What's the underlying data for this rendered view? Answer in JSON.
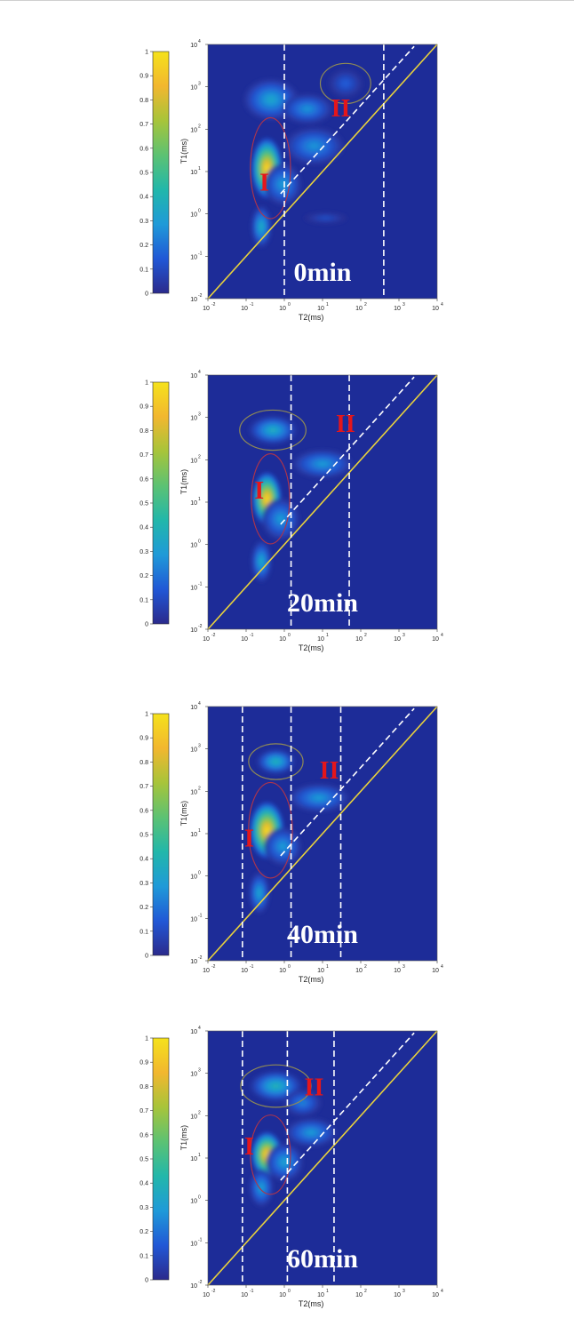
{
  "colors": {
    "background_map": "#1d2c98",
    "diagonal_line": "#e9d23c",
    "dashed_line": "#ffffff",
    "region_label": "#e4161b",
    "contour_upper": "#8f8a55",
    "contour_lower": "#b0344a",
    "colormap": [
      "#2b2a8c",
      "#2158d6",
      "#1f9ad8",
      "#22b7aa",
      "#5cc273",
      "#a7c43a",
      "#f2b72f",
      "#f5e21b"
    ]
  },
  "chart_data": [
    {
      "type": "heatmap",
      "time_label": "0min",
      "xlabel": "T2(ms)",
      "ylabel": "T1(ms)",
      "x_scale": "log",
      "y_scale": "log",
      "xlim": [
        0.01,
        10000
      ],
      "ylim": [
        0.01,
        10000
      ],
      "x_ticks": [
        {
          "base": "10",
          "exp": "-2"
        },
        {
          "base": "10",
          "exp": "-1"
        },
        {
          "base": "10",
          "exp": "0"
        },
        {
          "base": "10",
          "exp": "1"
        },
        {
          "base": "10",
          "exp": "2"
        },
        {
          "base": "10",
          "exp": "3"
        },
        {
          "base": "10",
          "exp": "4"
        }
      ],
      "y_ticks": [
        {
          "base": "10",
          "exp": "-2"
        },
        {
          "base": "10",
          "exp": "-1"
        },
        {
          "base": "10",
          "exp": "0"
        },
        {
          "base": "10",
          "exp": "1"
        },
        {
          "base": "10",
          "exp": "2"
        },
        {
          "base": "10",
          "exp": "3"
        },
        {
          "base": "10",
          "exp": "4"
        }
      ],
      "colorbar": {
        "min": 0,
        "max": 1,
        "ticks": [
          "0",
          "0.1",
          "0.2",
          "0.3",
          "0.4",
          "0.5",
          "0.6",
          "0.7",
          "0.8",
          "0.9",
          "1"
        ]
      },
      "cutoffs_T2": [
        1.0,
        400
      ],
      "region_labels": [
        {
          "text": "I",
          "x": 0.3,
          "y": 3.5
        },
        {
          "text": "II",
          "x": 30,
          "y": 200
        }
      ],
      "peaks": [
        {
          "T2": 0.35,
          "T1": 12,
          "amplitude": 1.0,
          "spread_x": 0.18,
          "spread_y": 0.32
        },
        {
          "T2": 0.25,
          "T1": 0.5,
          "amplitude": 0.38,
          "spread_x": 0.12,
          "spread_y": 0.22
        },
        {
          "T2": 0.9,
          "T1": 5,
          "amplitude": 0.3,
          "spread_x": 0.22,
          "spread_y": 0.22
        },
        {
          "T2": 6,
          "T1": 40,
          "amplitude": 0.28,
          "spread_x": 0.35,
          "spread_y": 0.2
        },
        {
          "T2": 0.45,
          "T1": 500,
          "amplitude": 0.34,
          "spread_x": 0.32,
          "spread_y": 0.22
        },
        {
          "T2": 4,
          "T1": 300,
          "amplitude": 0.28,
          "spread_x": 0.3,
          "spread_y": 0.16
        },
        {
          "T2": 40,
          "T1": 1200,
          "amplitude": 0.16,
          "spread_x": 0.2,
          "spread_y": 0.15
        },
        {
          "T2": 12,
          "T1": 0.8,
          "amplitude": 0.12,
          "spread_x": 0.25,
          "spread_y": 0.06
        }
      ]
    },
    {
      "type": "heatmap",
      "time_label": "20min",
      "xlabel": "T2(ms)",
      "ylabel": "T1(ms)",
      "x_scale": "log",
      "y_scale": "log",
      "xlim": [
        0.01,
        10000
      ],
      "ylim": [
        0.01,
        10000
      ],
      "x_ticks": [
        {
          "base": "10",
          "exp": "-2"
        },
        {
          "base": "10",
          "exp": "-1"
        },
        {
          "base": "10",
          "exp": "0"
        },
        {
          "base": "10",
          "exp": "1"
        },
        {
          "base": "10",
          "exp": "2"
        },
        {
          "base": "10",
          "exp": "3"
        },
        {
          "base": "10",
          "exp": "4"
        }
      ],
      "y_ticks": [
        {
          "base": "10",
          "exp": "-2"
        },
        {
          "base": "10",
          "exp": "-1"
        },
        {
          "base": "10",
          "exp": "0"
        },
        {
          "base": "10",
          "exp": "1"
        },
        {
          "base": "10",
          "exp": "2"
        },
        {
          "base": "10",
          "exp": "3"
        },
        {
          "base": "10",
          "exp": "4"
        }
      ],
      "colorbar": {
        "min": 0,
        "max": 1,
        "ticks": [
          "0",
          "0.1",
          "0.2",
          "0.3",
          "0.4",
          "0.5",
          "0.6",
          "0.7",
          "0.8",
          "0.9",
          "1"
        ]
      },
      "cutoffs_T2": [
        1.5,
        50
      ],
      "region_labels": [
        {
          "text": "I",
          "x": 0.22,
          "y": 12
        },
        {
          "text": "II",
          "x": 40,
          "y": 450
        }
      ],
      "peaks": [
        {
          "T2": 0.35,
          "T1": 12,
          "amplitude": 1.0,
          "spread_x": 0.17,
          "spread_y": 0.28
        },
        {
          "T2": 0.25,
          "T1": 0.4,
          "amplitude": 0.36,
          "spread_x": 0.12,
          "spread_y": 0.22
        },
        {
          "T2": 0.8,
          "T1": 4,
          "amplitude": 0.3,
          "spread_x": 0.22,
          "spread_y": 0.22
        },
        {
          "T2": 10,
          "T1": 80,
          "amplitude": 0.3,
          "spread_x": 0.35,
          "spread_y": 0.15
        },
        {
          "T2": 0.5,
          "T1": 500,
          "amplitude": 0.38,
          "spread_x": 0.28,
          "spread_y": 0.15
        }
      ]
    },
    {
      "type": "heatmap",
      "time_label": "40min",
      "xlabel": "T2(ms)",
      "ylabel": "T1(ms)",
      "x_scale": "log",
      "y_scale": "log",
      "xlim": [
        0.01,
        10000
      ],
      "ylim": [
        0.01,
        10000
      ],
      "x_ticks": [
        {
          "base": "10",
          "exp": "-2"
        },
        {
          "base": "10",
          "exp": "-1"
        },
        {
          "base": "10",
          "exp": "0"
        },
        {
          "base": "10",
          "exp": "1"
        },
        {
          "base": "10",
          "exp": "2"
        },
        {
          "base": "10",
          "exp": "3"
        },
        {
          "base": "10",
          "exp": "4"
        }
      ],
      "y_ticks": [
        {
          "base": "10",
          "exp": "-2"
        },
        {
          "base": "10",
          "exp": "-1"
        },
        {
          "base": "10",
          "exp": "0"
        },
        {
          "base": "10",
          "exp": "1"
        },
        {
          "base": "10",
          "exp": "2"
        },
        {
          "base": "10",
          "exp": "3"
        },
        {
          "base": "10",
          "exp": "4"
        }
      ],
      "colorbar": {
        "min": 0,
        "max": 1,
        "ticks": [
          "0",
          "0.1",
          "0.2",
          "0.3",
          "0.4",
          "0.5",
          "0.6",
          "0.7",
          "0.8",
          "0.9",
          "1"
        ]
      },
      "cutoffs_T2": [
        0.08,
        1.5,
        30
      ],
      "region_labels": [
        {
          "text": "I",
          "x": 0.12,
          "y": 5
        },
        {
          "text": "II",
          "x": 15,
          "y": 200
        }
      ],
      "peaks": [
        {
          "T2": 0.35,
          "T1": 12,
          "amplitude": 1.0,
          "spread_x": 0.2,
          "spread_y": 0.3
        },
        {
          "T2": 0.22,
          "T1": 0.4,
          "amplitude": 0.34,
          "spread_x": 0.12,
          "spread_y": 0.22
        },
        {
          "T2": 0.9,
          "T1": 5,
          "amplitude": 0.3,
          "spread_x": 0.22,
          "spread_y": 0.2
        },
        {
          "T2": 8,
          "T1": 70,
          "amplitude": 0.3,
          "spread_x": 0.35,
          "spread_y": 0.15
        },
        {
          "T2": 0.6,
          "T1": 500,
          "amplitude": 0.4,
          "spread_x": 0.22,
          "spread_y": 0.13
        }
      ]
    },
    {
      "type": "heatmap",
      "time_label": "60min",
      "xlabel": "T2(ms)",
      "ylabel": "T1(ms)",
      "x_scale": "log",
      "y_scale": "log",
      "xlim": [
        0.01,
        10000
      ],
      "ylim": [
        0.01,
        10000
      ],
      "x_ticks": [
        {
          "base": "10",
          "exp": "-2"
        },
        {
          "base": "10",
          "exp": "-1"
        },
        {
          "base": "10",
          "exp": "0"
        },
        {
          "base": "10",
          "exp": "1"
        },
        {
          "base": "10",
          "exp": "2"
        },
        {
          "base": "10",
          "exp": "3"
        },
        {
          "base": "10",
          "exp": "4"
        }
      ],
      "y_ticks": [
        {
          "base": "10",
          "exp": "-2"
        },
        {
          "base": "10",
          "exp": "-1"
        },
        {
          "base": "10",
          "exp": "0"
        },
        {
          "base": "10",
          "exp": "1"
        },
        {
          "base": "10",
          "exp": "2"
        },
        {
          "base": "10",
          "exp": "3"
        },
        {
          "base": "10",
          "exp": "4"
        }
      ],
      "colorbar": {
        "min": 0,
        "max": 1,
        "ticks": [
          "0",
          "0.1",
          "0.2",
          "0.3",
          "0.4",
          "0.5",
          "0.6",
          "0.7",
          "0.8",
          "0.9",
          "1"
        ]
      },
      "cutoffs_T2": [
        0.08,
        1.2,
        20
      ],
      "region_labels": [
        {
          "text": "I",
          "x": 0.12,
          "y": 12
        },
        {
          "text": "II",
          "x": 6,
          "y": 300
        }
      ],
      "peaks": [
        {
          "T2": 0.35,
          "T1": 12,
          "amplitude": 1.0,
          "spread_x": 0.18,
          "spread_y": 0.24
        },
        {
          "T2": 0.25,
          "T1": 2,
          "amplitude": 0.32,
          "spread_x": 0.14,
          "spread_y": 0.2
        },
        {
          "T2": 1,
          "T1": 8,
          "amplitude": 0.32,
          "spread_x": 0.22,
          "spread_y": 0.2
        },
        {
          "T2": 5,
          "T1": 40,
          "amplitude": 0.3,
          "spread_x": 0.3,
          "spread_y": 0.15
        },
        {
          "T2": 0.6,
          "T1": 500,
          "amplitude": 0.4,
          "spread_x": 0.3,
          "spread_y": 0.16
        },
        {
          "T2": 3,
          "T1": 200,
          "amplitude": 0.24,
          "spread_x": 0.22,
          "spread_y": 0.14
        }
      ]
    }
  ]
}
